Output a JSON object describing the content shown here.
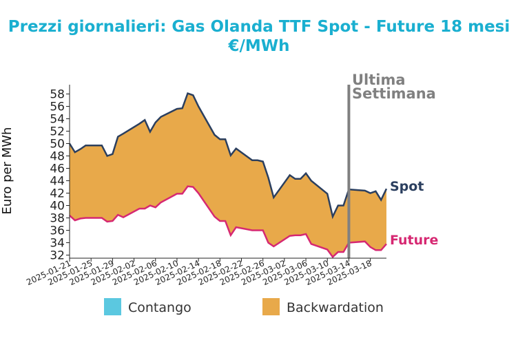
{
  "chart_data": {
    "type": "area",
    "title_line1": "Prezzi giornalieri: Gas Olanda TTF Spot - Future 18 mesi",
    "title_line2": "€/MWh",
    "ylabel": "Euro per MWh",
    "xlabel": "",
    "ylim": [
      31.5,
      59.5
    ],
    "yticks": [
      32,
      34,
      36,
      38,
      40,
      42,
      44,
      46,
      48,
      50,
      52,
      54,
      56,
      58
    ],
    "x_start": "2025-01-21",
    "x_end": "2025-03-21",
    "xticks": [
      "2025-01-21",
      "2025-01-25",
      "2025-01-29",
      "2025-02-02",
      "2025-02-06",
      "2025-02-10",
      "2025-02-14",
      "2025-02-18",
      "2025-02-22",
      "2025-02-26",
      "2025-03-02",
      "2025-03-06",
      "2025-03-10",
      "2025-03-14",
      "2025-03-18"
    ],
    "x": [
      "2025-01-21",
      "2025-01-22",
      "2025-01-23",
      "2025-01-24",
      "2025-01-27",
      "2025-01-28",
      "2025-01-29",
      "2025-01-30",
      "2025-01-31",
      "2025-02-03",
      "2025-02-04",
      "2025-02-05",
      "2025-02-06",
      "2025-02-07",
      "2025-02-10",
      "2025-02-11",
      "2025-02-12",
      "2025-02-13",
      "2025-02-14",
      "2025-02-17",
      "2025-02-18",
      "2025-02-19",
      "2025-02-20",
      "2025-02-21",
      "2025-02-24",
      "2025-02-25",
      "2025-02-26",
      "2025-02-27",
      "2025-02-28",
      "2025-03-03",
      "2025-03-04",
      "2025-03-05",
      "2025-03-06",
      "2025-03-07",
      "2025-03-10",
      "2025-03-11",
      "2025-03-12",
      "2025-03-13",
      "2025-03-14",
      "2025-03-17",
      "2025-03-18",
      "2025-03-19",
      "2025-03-20",
      "2025-03-21"
    ],
    "series": [
      {
        "name": "Spot",
        "color": "#2B3F5F",
        "values": [
          50.0,
          48.6,
          49.1,
          49.7,
          49.7,
          48.0,
          48.3,
          51.1,
          51.6,
          53.2,
          53.8,
          51.9,
          53.4,
          54.3,
          55.6,
          55.7,
          58.1,
          57.8,
          56.0,
          51.4,
          50.7,
          50.7,
          48.1,
          49.2,
          47.3,
          47.3,
          47.1,
          44.5,
          41.3,
          44.9,
          44.3,
          44.3,
          45.2,
          44.0,
          41.9,
          38.2,
          40.0,
          40.0,
          42.6,
          42.4,
          42.0,
          42.3,
          40.9,
          42.7
        ]
      },
      {
        "name": "Future",
        "color": "#D62872",
        "values": [
          38.4,
          37.6,
          37.9,
          38.0,
          38.0,
          37.4,
          37.5,
          38.5,
          38.1,
          39.5,
          39.5,
          40.0,
          39.7,
          40.5,
          41.9,
          41.9,
          43.1,
          43.0,
          42.0,
          38.2,
          37.5,
          37.5,
          35.2,
          36.5,
          36.0,
          36.0,
          36.0,
          34.0,
          33.4,
          35.1,
          35.2,
          35.2,
          35.4,
          33.8,
          32.9,
          31.7,
          32.5,
          32.5,
          34.0,
          34.2,
          33.3,
          32.8,
          32.8,
          33.8
        ]
      }
    ],
    "fill_colors": {
      "contango": "#5BC8E0",
      "backwardation": "#E8A94A"
    },
    "legend": [
      {
        "key": "contango",
        "label": "Contango"
      },
      {
        "key": "backwardation",
        "label": "Backwardation"
      }
    ],
    "legend_position": "bottom",
    "vline": {
      "date": "2025-03-14",
      "label_line1": "Ultima",
      "label_line2": "Settimana",
      "color": "#808080"
    },
    "grid": false
  }
}
